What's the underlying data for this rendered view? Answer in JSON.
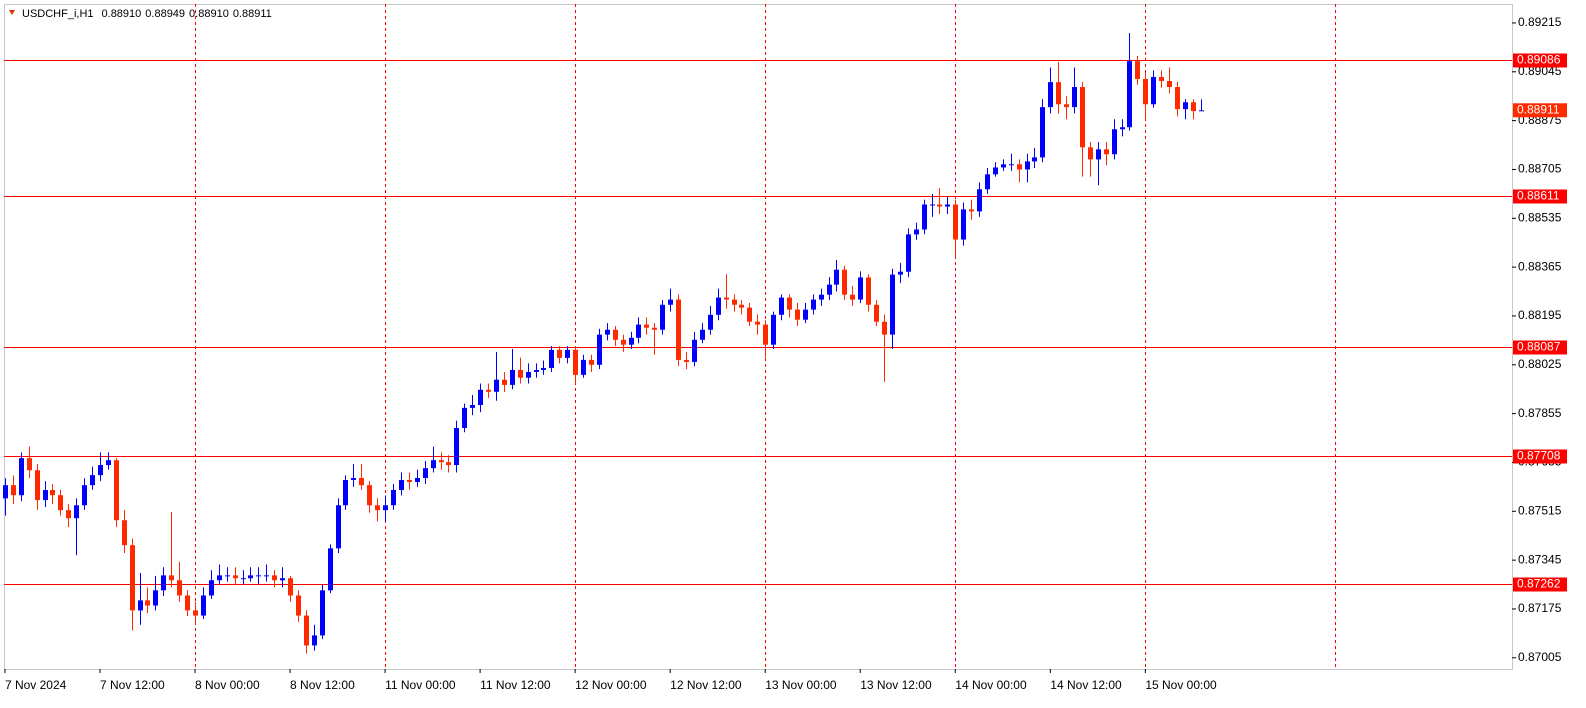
{
  "chart_data": {
    "type": "candlestick",
    "title": "USDCHF_i,H1",
    "header_values": [
      "0.88910",
      "0.88949",
      "0.88910",
      "0.88911"
    ],
    "bull_color": "#0000ff",
    "bear_color": "#ff2a00",
    "level_color": "#ff0000",
    "ylim": [
      0.86966,
      0.89281
    ],
    "yticks": [
      0.89215,
      0.89045,
      0.88875,
      0.88705,
      0.88535,
      0.88365,
      0.88195,
      0.88025,
      0.87855,
      0.87685,
      0.87515,
      0.87345,
      0.87175,
      0.87005
    ],
    "xlim": [
      -0.12,
      190.3
    ],
    "xticks": [
      {
        "value": 0,
        "label": "7 Nov 2024"
      },
      {
        "value": 12,
        "label": "7 Nov 12:00"
      },
      {
        "value": 24,
        "label": "8 Nov 00:00"
      },
      {
        "value": 36,
        "label": "8 Nov 12:00"
      },
      {
        "value": 48,
        "label": "11 Nov 00:00"
      },
      {
        "value": 60,
        "label": "11 Nov 12:00"
      },
      {
        "value": 72,
        "label": "12 Nov 00:00"
      },
      {
        "value": 84,
        "label": "12 Nov 12:00"
      },
      {
        "value": 96,
        "label": "13 Nov 00:00"
      },
      {
        "value": 108,
        "label": "13 Nov 12:00"
      },
      {
        "value": 120,
        "label": "14 Nov 00:00"
      },
      {
        "value": 132,
        "label": "14 Nov 12:00"
      },
      {
        "value": 144,
        "label": "15 Nov 00:00"
      }
    ],
    "vgrid": [
      24,
      48,
      72,
      96,
      120,
      144,
      168
    ],
    "levels": [
      0.89086,
      0.88611,
      0.88087,
      0.87708,
      0.87262
    ],
    "current_price": 0.88911,
    "candles": [
      [
        0.8756,
        0.8763,
        0.875,
        0.87606
      ],
      [
        0.87606,
        0.8764,
        0.8754,
        0.87571
      ],
      [
        0.87571,
        0.8772,
        0.8755,
        0.877
      ],
      [
        0.877,
        0.8774,
        0.8763,
        0.87658
      ],
      [
        0.87658,
        0.8768,
        0.8752,
        0.87554
      ],
      [
        0.87554,
        0.8762,
        0.8753,
        0.87589
      ],
      [
        0.87589,
        0.8761,
        0.8754,
        0.87571
      ],
      [
        0.87571,
        0.8759,
        0.875,
        0.87519
      ],
      [
        0.87519,
        0.8754,
        0.8746,
        0.87491
      ],
      [
        0.87491,
        0.8756,
        0.87362,
        0.87536
      ],
      [
        0.87536,
        0.8763,
        0.8752,
        0.87606
      ],
      [
        0.87606,
        0.8767,
        0.8759,
        0.87641
      ],
      [
        0.87641,
        0.8772,
        0.8762,
        0.87676
      ],
      [
        0.87676,
        0.8772,
        0.8766,
        0.87693
      ],
      [
        0.87693,
        0.877,
        0.8746,
        0.87484
      ],
      [
        0.87484,
        0.8752,
        0.8737,
        0.87397
      ],
      [
        0.87397,
        0.8742,
        0.871,
        0.8717
      ],
      [
        0.8717,
        0.873,
        0.8712,
        0.87205
      ],
      [
        0.87205,
        0.8725,
        0.8716,
        0.87187
      ],
      [
        0.87187,
        0.8729,
        0.8717,
        0.8724
      ],
      [
        0.8724,
        0.8732,
        0.8722,
        0.87292
      ],
      [
        0.87292,
        0.87512,
        0.8725,
        0.87275
      ],
      [
        0.87275,
        0.8734,
        0.872,
        0.87222
      ],
      [
        0.87222,
        0.8724,
        0.8715,
        0.8717
      ],
      [
        0.8717,
        0.872,
        0.8712,
        0.87152
      ],
      [
        0.87152,
        0.8725,
        0.8714,
        0.87222
      ],
      [
        0.87222,
        0.8731,
        0.8721,
        0.87275
      ],
      [
        0.87275,
        0.8733,
        0.8726,
        0.87292
      ],
      [
        0.87292,
        0.8732,
        0.8727,
        0.87292
      ],
      [
        0.87292,
        0.8732,
        0.8726,
        0.87282
      ],
      [
        0.87282,
        0.8731,
        0.8726,
        0.87282
      ],
      [
        0.87282,
        0.8732,
        0.8727,
        0.87292
      ],
      [
        0.87292,
        0.8732,
        0.8726,
        0.87292
      ],
      [
        0.87292,
        0.8733,
        0.8727,
        0.87292
      ],
      [
        0.87292,
        0.8731,
        0.8725,
        0.87275
      ],
      [
        0.87275,
        0.8732,
        0.8725,
        0.87282
      ],
      [
        0.87282,
        0.8729,
        0.872,
        0.87222
      ],
      [
        0.87222,
        0.8724,
        0.8713,
        0.87152
      ],
      [
        0.87152,
        0.8717,
        0.8702,
        0.87048
      ],
      [
        0.87048,
        0.8712,
        0.8703,
        0.87083
      ],
      [
        0.87083,
        0.8726,
        0.8707,
        0.8724
      ],
      [
        0.8724,
        0.874,
        0.8723,
        0.87386
      ],
      [
        0.87386,
        0.8756,
        0.8737,
        0.87536
      ],
      [
        0.87536,
        0.8764,
        0.8752,
        0.87624
      ],
      [
        0.87624,
        0.8768,
        0.876,
        0.87631
      ],
      [
        0.87631,
        0.8768,
        0.8759,
        0.87606
      ],
      [
        0.87606,
        0.8762,
        0.8751,
        0.87536
      ],
      [
        0.87536,
        0.8756,
        0.8748,
        0.87519
      ],
      [
        0.87519,
        0.8757,
        0.8748,
        0.87536
      ],
      [
        0.87536,
        0.8761,
        0.8752,
        0.87589
      ],
      [
        0.87589,
        0.8765,
        0.8757,
        0.87624
      ],
      [
        0.87624,
        0.8765,
        0.8759,
        0.87617
      ],
      [
        0.87617,
        0.8766,
        0.876,
        0.87631
      ],
      [
        0.87631,
        0.8769,
        0.8761,
        0.87665
      ],
      [
        0.87665,
        0.8774,
        0.8765,
        0.87693
      ],
      [
        0.87693,
        0.8772,
        0.8766,
        0.87686
      ],
      [
        0.87686,
        0.8771,
        0.8765,
        0.87676
      ],
      [
        0.87676,
        0.8783,
        0.8765,
        0.87805
      ],
      [
        0.87805,
        0.8789,
        0.8779,
        0.87875
      ],
      [
        0.87875,
        0.8792,
        0.8785,
        0.87885
      ],
      [
        0.87885,
        0.8796,
        0.8786,
        0.87938
      ],
      [
        0.87938,
        0.8796,
        0.8791,
        0.87931
      ],
      [
        0.87931,
        0.8807,
        0.879,
        0.87973
      ],
      [
        0.87973,
        0.88,
        0.8793,
        0.87955
      ],
      [
        0.87955,
        0.8808,
        0.8794,
        0.88007
      ],
      [
        0.88007,
        0.8805,
        0.8796,
        0.8798
      ],
      [
        0.8798,
        0.8803,
        0.8796,
        0.88
      ],
      [
        0.88,
        0.8803,
        0.8798,
        0.88007
      ],
      [
        0.88007,
        0.8804,
        0.8799,
        0.88014
      ],
      [
        0.88014,
        0.8809,
        0.88,
        0.88077
      ],
      [
        0.88077,
        0.8809,
        0.8803,
        0.88049
      ],
      [
        0.88049,
        0.8809,
        0.8803,
        0.88077
      ],
      [
        0.88077,
        0.8809,
        0.8796,
        0.8799
      ],
      [
        0.8799,
        0.8806,
        0.8798,
        0.88042
      ],
      [
        0.88042,
        0.8806,
        0.88,
        0.88025
      ],
      [
        0.88025,
        0.8815,
        0.8801,
        0.8813
      ],
      [
        0.8813,
        0.8817,
        0.8811,
        0.88147
      ],
      [
        0.88147,
        0.8816,
        0.8809,
        0.88112
      ],
      [
        0.88112,
        0.8813,
        0.8807,
        0.88095
      ],
      [
        0.88095,
        0.8814,
        0.8808,
        0.88119
      ],
      [
        0.88119,
        0.8819,
        0.881,
        0.88165
      ],
      [
        0.88165,
        0.8819,
        0.8813,
        0.88154
      ],
      [
        0.88154,
        0.8817,
        0.8806,
        0.88147
      ],
      [
        0.88147,
        0.8825,
        0.8813,
        0.88234
      ],
      [
        0.88234,
        0.8829,
        0.8821,
        0.88252
      ],
      [
        0.88252,
        0.8827,
        0.8802,
        0.88042
      ],
      [
        0.88042,
        0.8807,
        0.8801,
        0.88035
      ],
      [
        0.88035,
        0.8814,
        0.8802,
        0.88112
      ],
      [
        0.88112,
        0.8817,
        0.881,
        0.88147
      ],
      [
        0.88147,
        0.8823,
        0.8813,
        0.88199
      ],
      [
        0.88199,
        0.8829,
        0.8818,
        0.88259
      ],
      [
        0.88259,
        0.8834,
        0.8822,
        0.88252
      ],
      [
        0.88252,
        0.8827,
        0.8821,
        0.88234
      ],
      [
        0.88234,
        0.8825,
        0.882,
        0.88224
      ],
      [
        0.88224,
        0.8824,
        0.8816,
        0.88175
      ],
      [
        0.88175,
        0.882,
        0.8813,
        0.88165
      ],
      [
        0.88165,
        0.8818,
        0.8805,
        0.88095
      ],
      [
        0.88095,
        0.8821,
        0.8808,
        0.88199
      ],
      [
        0.88199,
        0.8827,
        0.8818,
        0.88259
      ],
      [
        0.88259,
        0.8827,
        0.8819,
        0.88217
      ],
      [
        0.88217,
        0.8824,
        0.8816,
        0.88182
      ],
      [
        0.88182,
        0.8824,
        0.8817,
        0.88217
      ],
      [
        0.88217,
        0.8827,
        0.882,
        0.88252
      ],
      [
        0.88252,
        0.8829,
        0.8823,
        0.88269
      ],
      [
        0.88269,
        0.8833,
        0.8825,
        0.88304
      ],
      [
        0.88304,
        0.8839,
        0.8828,
        0.88356
      ],
      [
        0.88356,
        0.8837,
        0.8825,
        0.88269
      ],
      [
        0.88269,
        0.883,
        0.8823,
        0.88252
      ],
      [
        0.88252,
        0.8835,
        0.8824,
        0.88329
      ],
      [
        0.88329,
        0.8834,
        0.8821,
        0.88234
      ],
      [
        0.88234,
        0.8825,
        0.8816,
        0.88175
      ],
      [
        0.88175,
        0.882,
        0.87966,
        0.8813
      ],
      [
        0.8813,
        0.8836,
        0.8808,
        0.88339
      ],
      [
        0.88339,
        0.8838,
        0.8831,
        0.88349
      ],
      [
        0.88349,
        0.885,
        0.8833,
        0.88479
      ],
      [
        0.88479,
        0.8852,
        0.8846,
        0.88496
      ],
      [
        0.88496,
        0.886,
        0.8848,
        0.88583
      ],
      [
        0.88583,
        0.8862,
        0.8854,
        0.88583
      ],
      [
        0.88583,
        0.8864,
        0.8855,
        0.88576
      ],
      [
        0.88576,
        0.8861,
        0.8855,
        0.88583
      ],
      [
        0.88583,
        0.886,
        0.884,
        0.88461
      ],
      [
        0.88461,
        0.8859,
        0.8844,
        0.88566
      ],
      [
        0.88566,
        0.886,
        0.8853,
        0.88559
      ],
      [
        0.88559,
        0.8866,
        0.8854,
        0.88636
      ],
      [
        0.88636,
        0.8871,
        0.8862,
        0.88688
      ],
      [
        0.88688,
        0.8873,
        0.8868,
        0.88712
      ],
      [
        0.88712,
        0.8874,
        0.887,
        0.88723
      ],
      [
        0.88723,
        0.8876,
        0.887,
        0.88723
      ],
      [
        0.88723,
        0.8874,
        0.8866,
        0.88705
      ],
      [
        0.88705,
        0.8876,
        0.8866,
        0.88733
      ],
      [
        0.88733,
        0.8878,
        0.8871,
        0.88747
      ],
      [
        0.88747,
        0.8895,
        0.8873,
        0.88922
      ],
      [
        0.88922,
        0.8906,
        0.889,
        0.89009
      ],
      [
        0.89009,
        0.8908,
        0.889,
        0.88932
      ],
      [
        0.88932,
        0.8896,
        0.8888,
        0.88922
      ],
      [
        0.88922,
        0.8906,
        0.889,
        0.88992
      ],
      [
        0.88992,
        0.8901,
        0.8868,
        0.88782
      ],
      [
        0.88782,
        0.888,
        0.8868,
        0.8874
      ],
      [
        0.8874,
        0.888,
        0.8865,
        0.88775
      ],
      [
        0.88775,
        0.888,
        0.8872,
        0.88758
      ],
      [
        0.88758,
        0.8888,
        0.8874,
        0.88845
      ],
      [
        0.88845,
        0.8888,
        0.8882,
        0.88852
      ],
      [
        0.88852,
        0.8918,
        0.8884,
        0.89082
      ],
      [
        0.89082,
        0.891,
        0.89,
        0.8902
      ],
      [
        0.8902,
        0.8904,
        0.8888,
        0.88932
      ],
      [
        0.88932,
        0.8905,
        0.8892,
        0.89027
      ],
      [
        0.89027,
        0.8905,
        0.8899,
        0.89013
      ],
      [
        0.89013,
        0.8906,
        0.8897,
        0.88992
      ],
      [
        0.88992,
        0.8901,
        0.8889,
        0.88915
      ],
      [
        0.88915,
        0.8895,
        0.8888,
        0.88939
      ],
      [
        0.88939,
        0.8895,
        0.8888,
        0.88908
      ],
      [
        0.8891,
        0.88949,
        0.8891,
        0.88911
      ]
    ]
  }
}
